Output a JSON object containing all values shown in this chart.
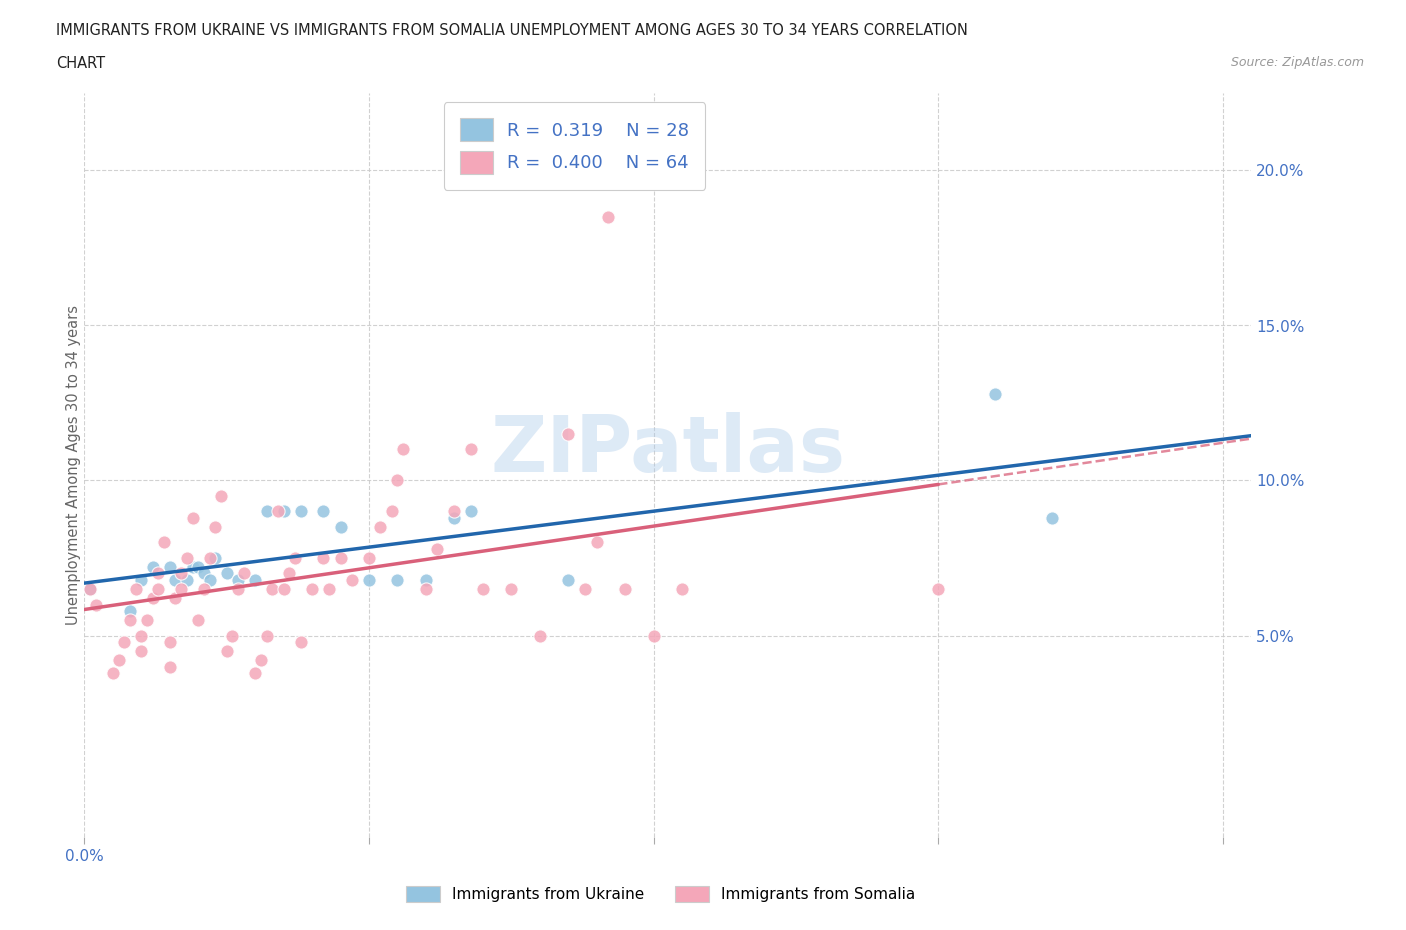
{
  "title_line1": "IMMIGRANTS FROM UKRAINE VS IMMIGRANTS FROM SOMALIA UNEMPLOYMENT AMONG AGES 30 TO 34 YEARS CORRELATION",
  "title_line2": "CHART",
  "source_text": "Source: ZipAtlas.com",
  "watermark": "ZIPatlas",
  "ukraine_R": 0.319,
  "ukraine_N": 28,
  "somalia_R": 0.4,
  "somalia_N": 64,
  "ukraine_color": "#94c4e0",
  "somalia_color": "#f4a7b9",
  "ukraine_trend_color": "#2166ac",
  "somalia_trend_color": "#d9607a",
  "xlim": [
    0.0,
    0.205
  ],
  "ylim": [
    -0.015,
    0.225
  ],
  "xticks": [
    0.0,
    0.05,
    0.1,
    0.15,
    0.2
  ],
  "yticks": [
    0.05,
    0.1,
    0.15,
    0.2
  ],
  "ylabel": "Unemployment Among Ages 30 to 34 years",
  "ukraine_x": [
    0.001,
    0.008,
    0.01,
    0.012,
    0.015,
    0.016,
    0.018,
    0.019,
    0.02,
    0.021,
    0.022,
    0.023,
    0.025,
    0.027,
    0.03,
    0.032,
    0.035,
    0.038,
    0.042,
    0.045,
    0.05,
    0.055,
    0.06,
    0.065,
    0.068,
    0.085,
    0.16,
    0.17
  ],
  "ukraine_y": [
    0.065,
    0.058,
    0.068,
    0.072,
    0.072,
    0.068,
    0.068,
    0.072,
    0.072,
    0.07,
    0.068,
    0.075,
    0.07,
    0.068,
    0.068,
    0.09,
    0.09,
    0.09,
    0.09,
    0.085,
    0.068,
    0.068,
    0.068,
    0.088,
    0.09,
    0.068,
    0.128,
    0.088
  ],
  "somalia_x": [
    0.001,
    0.002,
    0.005,
    0.006,
    0.007,
    0.008,
    0.009,
    0.01,
    0.01,
    0.011,
    0.012,
    0.013,
    0.013,
    0.014,
    0.015,
    0.015,
    0.016,
    0.017,
    0.017,
    0.018,
    0.019,
    0.02,
    0.021,
    0.022,
    0.023,
    0.024,
    0.025,
    0.026,
    0.027,
    0.028,
    0.03,
    0.031,
    0.032,
    0.033,
    0.034,
    0.035,
    0.036,
    0.037,
    0.038,
    0.04,
    0.042,
    0.043,
    0.045,
    0.047,
    0.05,
    0.052,
    0.054,
    0.055,
    0.056,
    0.06,
    0.062,
    0.065,
    0.068,
    0.07,
    0.075,
    0.08,
    0.085,
    0.088,
    0.09,
    0.092,
    0.095,
    0.1,
    0.105,
    0.15
  ],
  "somalia_y": [
    0.065,
    0.06,
    0.038,
    0.042,
    0.048,
    0.055,
    0.065,
    0.045,
    0.05,
    0.055,
    0.062,
    0.065,
    0.07,
    0.08,
    0.04,
    0.048,
    0.062,
    0.065,
    0.07,
    0.075,
    0.088,
    0.055,
    0.065,
    0.075,
    0.085,
    0.095,
    0.045,
    0.05,
    0.065,
    0.07,
    0.038,
    0.042,
    0.05,
    0.065,
    0.09,
    0.065,
    0.07,
    0.075,
    0.048,
    0.065,
    0.075,
    0.065,
    0.075,
    0.068,
    0.075,
    0.085,
    0.09,
    0.1,
    0.11,
    0.065,
    0.078,
    0.09,
    0.11,
    0.065,
    0.065,
    0.05,
    0.115,
    0.065,
    0.08,
    0.185,
    0.065,
    0.05,
    0.065,
    0.065
  ]
}
